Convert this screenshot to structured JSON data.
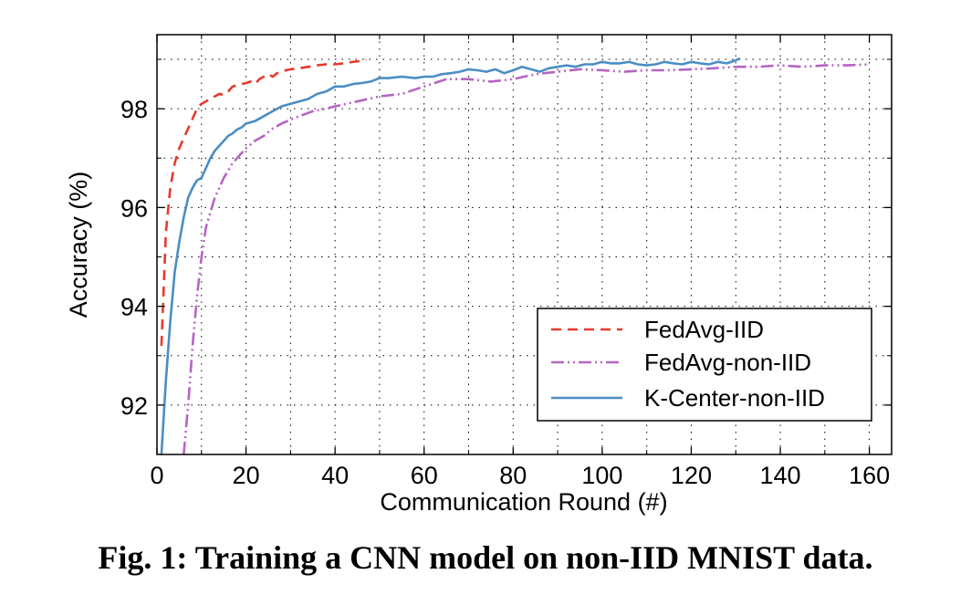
{
  "caption": "Fig. 1: Training a CNN model on non-IID MNIST data.",
  "chart_data": {
    "type": "line",
    "title": "",
    "xlabel": "Communication Round (#)",
    "ylabel": "Accuracy (%)",
    "xlim": [
      0,
      165
    ],
    "ylim": [
      91,
      99.5
    ],
    "xticks": [
      0,
      20,
      40,
      60,
      80,
      100,
      120,
      140,
      160
    ],
    "yticks": [
      92,
      94,
      96,
      98
    ],
    "grid": true,
    "legend_position": "lower-right",
    "series": [
      {
        "name": "FedAvg-IID",
        "color": "#e8392a",
        "style": "dashed",
        "x": [
          1,
          2,
          3,
          4,
          5,
          6,
          7,
          8,
          9,
          10,
          11,
          12,
          13,
          14,
          15,
          16,
          17,
          18,
          19,
          20,
          21,
          22,
          23,
          24,
          25,
          26,
          27,
          28,
          29,
          30,
          32,
          34,
          36,
          38,
          40,
          42,
          44,
          46,
          47
        ],
        "y": [
          93.2,
          95.5,
          96.4,
          96.9,
          97.2,
          97.4,
          97.6,
          97.8,
          98.0,
          98.1,
          98.15,
          98.2,
          98.25,
          98.3,
          98.28,
          98.35,
          98.45,
          98.48,
          98.5,
          98.52,
          98.55,
          98.5,
          98.6,
          98.65,
          98.7,
          98.65,
          98.72,
          98.75,
          98.78,
          98.8,
          98.82,
          98.85,
          98.88,
          98.9,
          98.9,
          98.92,
          98.95,
          98.97,
          99.0
        ]
      },
      {
        "name": "FedAvg-non-IID",
        "color": "#b565c2",
        "style": "dashdotdot",
        "x": [
          6,
          7,
          8,
          9,
          10,
          11,
          12,
          13,
          14,
          15,
          16,
          17,
          18,
          19,
          20,
          22,
          24,
          26,
          28,
          30,
          32,
          35,
          38,
          40,
          45,
          50,
          55,
          60,
          65,
          70,
          75,
          80,
          85,
          90,
          95,
          100,
          105,
          110,
          115,
          120,
          125,
          130,
          135,
          140,
          145,
          150,
          155,
          160
        ],
        "y": [
          91.0,
          92.0,
          93.2,
          94.2,
          95.0,
          95.6,
          95.9,
          96.2,
          96.4,
          96.6,
          96.75,
          96.9,
          97.0,
          97.1,
          97.2,
          97.35,
          97.45,
          97.6,
          97.7,
          97.78,
          97.85,
          97.95,
          98.0,
          98.05,
          98.15,
          98.25,
          98.3,
          98.45,
          98.6,
          98.6,
          98.55,
          98.6,
          98.7,
          98.75,
          98.8,
          98.78,
          98.75,
          98.78,
          98.78,
          98.8,
          98.82,
          98.85,
          98.85,
          98.88,
          98.85,
          98.88,
          98.88,
          98.9
        ]
      },
      {
        "name": "K-Center-non-IID",
        "color": "#4a8ec4",
        "style": "solid",
        "x": [
          1,
          2,
          3,
          4,
          5,
          6,
          7,
          8,
          9,
          10,
          11,
          12,
          13,
          14,
          15,
          16,
          17,
          18,
          19,
          20,
          22,
          24,
          26,
          28,
          30,
          32,
          34,
          36,
          38,
          40,
          42,
          44,
          46,
          48,
          50,
          52,
          55,
          58,
          60,
          62,
          64,
          66,
          68,
          70,
          72,
          74,
          76,
          78,
          80,
          82,
          84,
          86,
          88,
          90,
          92,
          94,
          96,
          98,
          100,
          102,
          104,
          106,
          108,
          110,
          112,
          114,
          116,
          118,
          120,
          122,
          124,
          126,
          128,
          130,
          131
        ],
        "y": [
          91.0,
          92.5,
          93.7,
          94.7,
          95.3,
          95.8,
          96.2,
          96.4,
          96.55,
          96.6,
          96.8,
          97.0,
          97.15,
          97.25,
          97.35,
          97.45,
          97.5,
          97.58,
          97.62,
          97.7,
          97.75,
          97.85,
          97.95,
          98.05,
          98.1,
          98.15,
          98.2,
          98.3,
          98.35,
          98.45,
          98.45,
          98.5,
          98.52,
          98.55,
          98.62,
          98.62,
          98.65,
          98.62,
          98.65,
          98.65,
          98.7,
          98.72,
          98.75,
          98.8,
          98.78,
          98.75,
          98.8,
          98.72,
          98.78,
          98.85,
          98.8,
          98.75,
          98.82,
          98.85,
          98.88,
          98.85,
          98.9,
          98.9,
          98.95,
          98.92,
          98.92,
          98.95,
          98.9,
          98.88,
          98.9,
          98.95,
          98.92,
          98.9,
          98.95,
          98.92,
          98.9,
          98.95,
          98.92,
          98.98,
          99.02
        ]
      }
    ]
  }
}
